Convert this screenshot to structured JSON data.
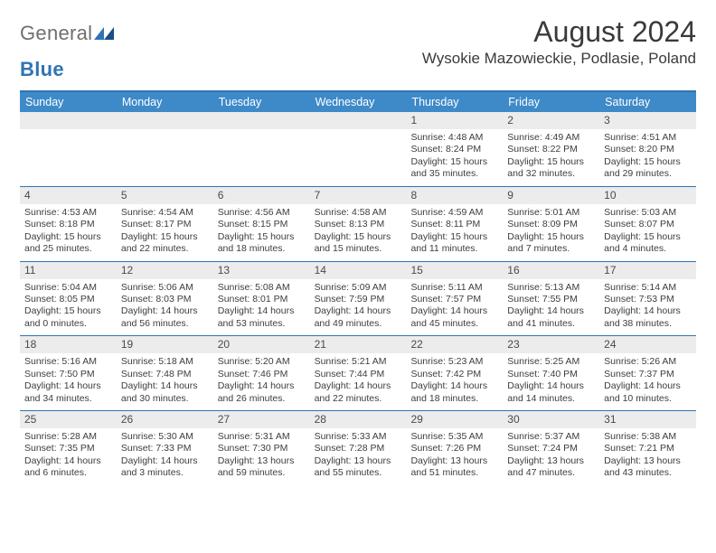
{
  "logo": {
    "general": "General",
    "blue": "Blue"
  },
  "header": {
    "title": "August 2024",
    "location": "Wysokie Mazowieckie, Podlasie, Poland"
  },
  "colors": {
    "header_bar": "#3e8ac9",
    "accent": "#2f74b5",
    "daynum_bg": "#ececec",
    "text": "#3a3a3a"
  },
  "weekdays": [
    "Sunday",
    "Monday",
    "Tuesday",
    "Wednesday",
    "Thursday",
    "Friday",
    "Saturday"
  ],
  "weeks": [
    [
      {
        "n": "",
        "sr": "",
        "ss": "",
        "d1": "",
        "d2": ""
      },
      {
        "n": "",
        "sr": "",
        "ss": "",
        "d1": "",
        "d2": ""
      },
      {
        "n": "",
        "sr": "",
        "ss": "",
        "d1": "",
        "d2": ""
      },
      {
        "n": "",
        "sr": "",
        "ss": "",
        "d1": "",
        "d2": ""
      },
      {
        "n": "1",
        "sr": "Sunrise: 4:48 AM",
        "ss": "Sunset: 8:24 PM",
        "d1": "Daylight: 15 hours",
        "d2": "and 35 minutes."
      },
      {
        "n": "2",
        "sr": "Sunrise: 4:49 AM",
        "ss": "Sunset: 8:22 PM",
        "d1": "Daylight: 15 hours",
        "d2": "and 32 minutes."
      },
      {
        "n": "3",
        "sr": "Sunrise: 4:51 AM",
        "ss": "Sunset: 8:20 PM",
        "d1": "Daylight: 15 hours",
        "d2": "and 29 minutes."
      }
    ],
    [
      {
        "n": "4",
        "sr": "Sunrise: 4:53 AM",
        "ss": "Sunset: 8:18 PM",
        "d1": "Daylight: 15 hours",
        "d2": "and 25 minutes."
      },
      {
        "n": "5",
        "sr": "Sunrise: 4:54 AM",
        "ss": "Sunset: 8:17 PM",
        "d1": "Daylight: 15 hours",
        "d2": "and 22 minutes."
      },
      {
        "n": "6",
        "sr": "Sunrise: 4:56 AM",
        "ss": "Sunset: 8:15 PM",
        "d1": "Daylight: 15 hours",
        "d2": "and 18 minutes."
      },
      {
        "n": "7",
        "sr": "Sunrise: 4:58 AM",
        "ss": "Sunset: 8:13 PM",
        "d1": "Daylight: 15 hours",
        "d2": "and 15 minutes."
      },
      {
        "n": "8",
        "sr": "Sunrise: 4:59 AM",
        "ss": "Sunset: 8:11 PM",
        "d1": "Daylight: 15 hours",
        "d2": "and 11 minutes."
      },
      {
        "n": "9",
        "sr": "Sunrise: 5:01 AM",
        "ss": "Sunset: 8:09 PM",
        "d1": "Daylight: 15 hours",
        "d2": "and 7 minutes."
      },
      {
        "n": "10",
        "sr": "Sunrise: 5:03 AM",
        "ss": "Sunset: 8:07 PM",
        "d1": "Daylight: 15 hours",
        "d2": "and 4 minutes."
      }
    ],
    [
      {
        "n": "11",
        "sr": "Sunrise: 5:04 AM",
        "ss": "Sunset: 8:05 PM",
        "d1": "Daylight: 15 hours",
        "d2": "and 0 minutes."
      },
      {
        "n": "12",
        "sr": "Sunrise: 5:06 AM",
        "ss": "Sunset: 8:03 PM",
        "d1": "Daylight: 14 hours",
        "d2": "and 56 minutes."
      },
      {
        "n": "13",
        "sr": "Sunrise: 5:08 AM",
        "ss": "Sunset: 8:01 PM",
        "d1": "Daylight: 14 hours",
        "d2": "and 53 minutes."
      },
      {
        "n": "14",
        "sr": "Sunrise: 5:09 AM",
        "ss": "Sunset: 7:59 PM",
        "d1": "Daylight: 14 hours",
        "d2": "and 49 minutes."
      },
      {
        "n": "15",
        "sr": "Sunrise: 5:11 AM",
        "ss": "Sunset: 7:57 PM",
        "d1": "Daylight: 14 hours",
        "d2": "and 45 minutes."
      },
      {
        "n": "16",
        "sr": "Sunrise: 5:13 AM",
        "ss": "Sunset: 7:55 PM",
        "d1": "Daylight: 14 hours",
        "d2": "and 41 minutes."
      },
      {
        "n": "17",
        "sr": "Sunrise: 5:14 AM",
        "ss": "Sunset: 7:53 PM",
        "d1": "Daylight: 14 hours",
        "d2": "and 38 minutes."
      }
    ],
    [
      {
        "n": "18",
        "sr": "Sunrise: 5:16 AM",
        "ss": "Sunset: 7:50 PM",
        "d1": "Daylight: 14 hours",
        "d2": "and 34 minutes."
      },
      {
        "n": "19",
        "sr": "Sunrise: 5:18 AM",
        "ss": "Sunset: 7:48 PM",
        "d1": "Daylight: 14 hours",
        "d2": "and 30 minutes."
      },
      {
        "n": "20",
        "sr": "Sunrise: 5:20 AM",
        "ss": "Sunset: 7:46 PM",
        "d1": "Daylight: 14 hours",
        "d2": "and 26 minutes."
      },
      {
        "n": "21",
        "sr": "Sunrise: 5:21 AM",
        "ss": "Sunset: 7:44 PM",
        "d1": "Daylight: 14 hours",
        "d2": "and 22 minutes."
      },
      {
        "n": "22",
        "sr": "Sunrise: 5:23 AM",
        "ss": "Sunset: 7:42 PM",
        "d1": "Daylight: 14 hours",
        "d2": "and 18 minutes."
      },
      {
        "n": "23",
        "sr": "Sunrise: 5:25 AM",
        "ss": "Sunset: 7:40 PM",
        "d1": "Daylight: 14 hours",
        "d2": "and 14 minutes."
      },
      {
        "n": "24",
        "sr": "Sunrise: 5:26 AM",
        "ss": "Sunset: 7:37 PM",
        "d1": "Daylight: 14 hours",
        "d2": "and 10 minutes."
      }
    ],
    [
      {
        "n": "25",
        "sr": "Sunrise: 5:28 AM",
        "ss": "Sunset: 7:35 PM",
        "d1": "Daylight: 14 hours",
        "d2": "and 6 minutes."
      },
      {
        "n": "26",
        "sr": "Sunrise: 5:30 AM",
        "ss": "Sunset: 7:33 PM",
        "d1": "Daylight: 14 hours",
        "d2": "and 3 minutes."
      },
      {
        "n": "27",
        "sr": "Sunrise: 5:31 AM",
        "ss": "Sunset: 7:30 PM",
        "d1": "Daylight: 13 hours",
        "d2": "and 59 minutes."
      },
      {
        "n": "28",
        "sr": "Sunrise: 5:33 AM",
        "ss": "Sunset: 7:28 PM",
        "d1": "Daylight: 13 hours",
        "d2": "and 55 minutes."
      },
      {
        "n": "29",
        "sr": "Sunrise: 5:35 AM",
        "ss": "Sunset: 7:26 PM",
        "d1": "Daylight: 13 hours",
        "d2": "and 51 minutes."
      },
      {
        "n": "30",
        "sr": "Sunrise: 5:37 AM",
        "ss": "Sunset: 7:24 PM",
        "d1": "Daylight: 13 hours",
        "d2": "and 47 minutes."
      },
      {
        "n": "31",
        "sr": "Sunrise: 5:38 AM",
        "ss": "Sunset: 7:21 PM",
        "d1": "Daylight: 13 hours",
        "d2": "and 43 minutes."
      }
    ]
  ]
}
